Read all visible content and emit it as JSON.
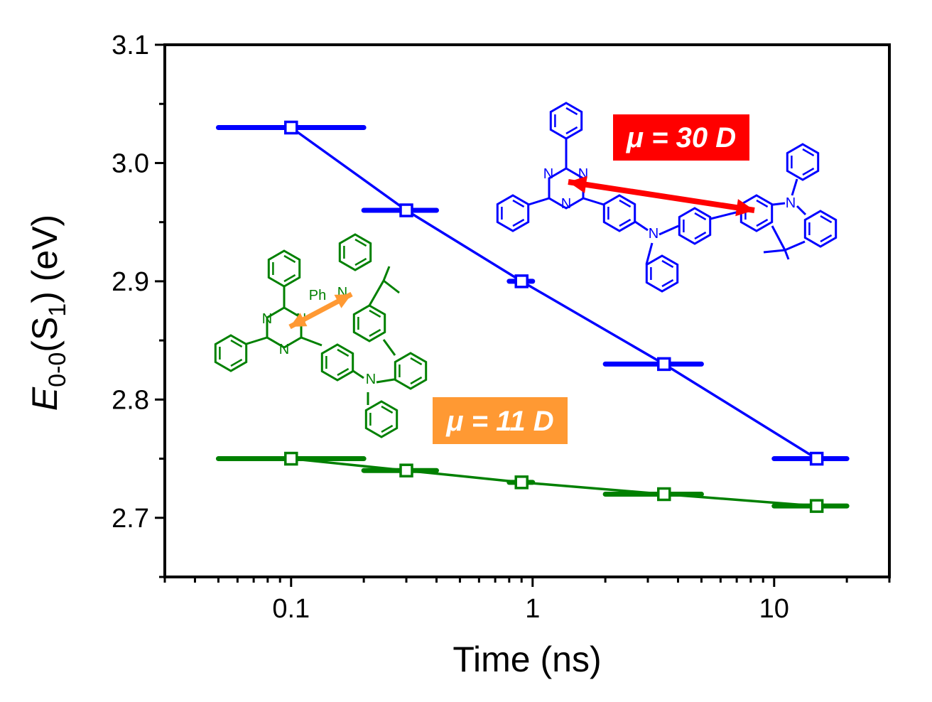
{
  "chart_data": {
    "type": "line",
    "title": "",
    "xlabel": "Time (ns)",
    "ylabel_parts": {
      "E": "E",
      "sub1": "0-0",
      "mid": "(S",
      "sub2": "1",
      "end": ") (eV)"
    },
    "xscale": "log",
    "xlim": [
      0.03,
      30
    ],
    "ylim": [
      2.65,
      3.1
    ],
    "xticks": [
      {
        "value": 0.1,
        "label": "0.1"
      },
      {
        "value": 1,
        "label": "1"
      },
      {
        "value": 10,
        "label": "10"
      }
    ],
    "yticks": [
      {
        "value": 2.7,
        "label": "2.7"
      },
      {
        "value": 2.8,
        "label": "2.8"
      },
      {
        "value": 2.9,
        "label": "2.9"
      },
      {
        "value": 3.0,
        "label": "3.0"
      },
      {
        "value": 3.1,
        "label": "3.1"
      }
    ],
    "grid": false,
    "series": [
      {
        "name": "μ = 30 D",
        "color": "#0000ff",
        "x": [
          0.1,
          0.3,
          0.9,
          3.5,
          15
        ],
        "y": [
          3.03,
          2.96,
          2.9,
          2.83,
          2.75
        ],
        "xerr_range": [
          [
            0.05,
            0.2
          ],
          [
            0.2,
            0.4
          ],
          [
            0.8,
            1.0
          ],
          [
            2,
            5
          ],
          [
            10,
            20
          ]
        ]
      },
      {
        "name": "μ = 11 D",
        "color": "#008000",
        "x": [
          0.1,
          0.3,
          0.9,
          3.5,
          15
        ],
        "y": [
          2.75,
          2.74,
          2.73,
          2.72,
          2.71
        ],
        "xerr_range": [
          [
            0.05,
            0.2
          ],
          [
            0.2,
            0.4
          ],
          [
            0.8,
            1.0
          ],
          [
            2,
            5
          ],
          [
            10,
            20
          ]
        ]
      }
    ],
    "annotations": [
      {
        "text": "μ = 30 D",
        "background": "#ff0000"
      },
      {
        "text": "μ = 11 D",
        "background": "#ff9933"
      }
    ],
    "molecule_labels": {
      "n": "N",
      "ph": "Ph"
    }
  }
}
